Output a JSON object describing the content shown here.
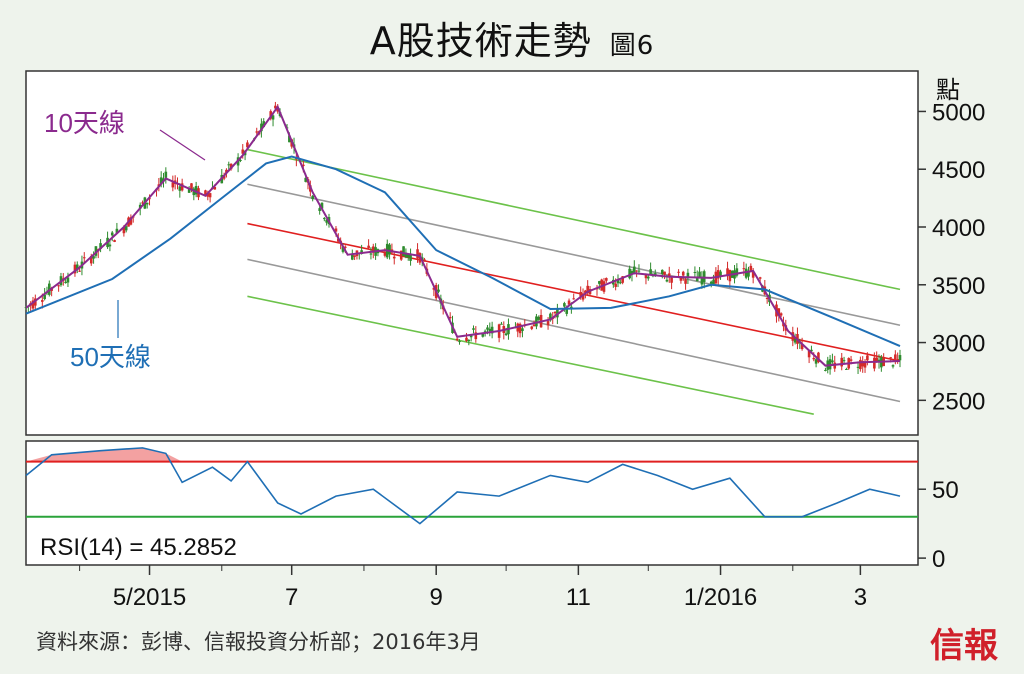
{
  "title": "A股技術走勢",
  "figure_no": "圖6",
  "source": "資料來源：彭博、信報投資分析部；2016年3月",
  "brand": "信報",
  "colors": {
    "candle_up": "#2e8b2e",
    "candle_down": "#d42a2a",
    "ma10": "#8b2a8e",
    "ma50": "#1f6fb5",
    "trend_red": "#e02020",
    "trend_gray": "#999999",
    "trend_green": "#6cc24a",
    "rsi": "#1f6fb5",
    "rsi_upper": "#e02020",
    "rsi_lower": "#2aa33a",
    "rsi_fill": "#f08a8a"
  },
  "chart_data": [
    {
      "type": "candlestick",
      "y_unit": "點",
      "ylim": [
        2200,
        5350
      ],
      "y_ticks": [
        2500,
        3000,
        3500,
        4000,
        4500,
        5000
      ],
      "x_ticks": [
        "5/2015",
        "7",
        "9",
        "11",
        "1/2016",
        "3"
      ],
      "x_range": [
        "2015-03-09",
        "2016-03-18"
      ],
      "series": [
        {
          "name": "10天線",
          "kind": "line",
          "x": [
            "2015-03-09",
            "2015-04-01",
            "2015-04-20",
            "2015-05-08",
            "2015-05-25",
            "2015-06-10",
            "2015-06-25",
            "2015-07-10",
            "2015-07-25",
            "2015-08-10",
            "2015-08-25",
            "2015-09-10",
            "2015-09-28",
            "2015-10-20",
            "2015-11-05",
            "2015-11-25",
            "2015-12-10",
            "2015-12-28",
            "2016-01-15",
            "2016-01-30",
            "2016-02-15",
            "2016-03-01",
            "2016-03-18"
          ],
          "y": [
            3300,
            3650,
            4000,
            4420,
            4270,
            4620,
            5040,
            4300,
            3760,
            3800,
            3750,
            3050,
            3100,
            3200,
            3440,
            3600,
            3570,
            3560,
            3620,
            3100,
            2800,
            2830,
            2840
          ]
        },
        {
          "name": "50天線",
          "kind": "line",
          "x": [
            "2015-03-09",
            "2015-04-15",
            "2015-05-10",
            "2015-06-01",
            "2015-06-20",
            "2015-07-01",
            "2015-07-20",
            "2015-08-10",
            "2015-09-01",
            "2015-09-25",
            "2015-10-20",
            "2015-11-15",
            "2015-12-10",
            "2015-12-28",
            "2016-01-20",
            "2016-02-20",
            "2016-03-18"
          ],
          "y": [
            3250,
            3550,
            3900,
            4250,
            4550,
            4610,
            4500,
            4300,
            3800,
            3560,
            3290,
            3300,
            3400,
            3500,
            3460,
            3200,
            2970
          ]
        }
      ],
      "annotations": [
        "10天線",
        "50天線"
      ],
      "channels": [
        {
          "name": "trend",
          "color": "red",
          "x": [
            "2015-06-12",
            "2016-03-18"
          ],
          "y": [
            4030,
            2840
          ]
        },
        {
          "name": "upper-inner",
          "color": "gray",
          "x": [
            "2015-06-12",
            "2016-03-18"
          ],
          "y": [
            4370,
            3150
          ]
        },
        {
          "name": "lower-inner",
          "color": "gray",
          "x": [
            "2015-06-12",
            "2016-03-18"
          ],
          "y": [
            3720,
            2490
          ]
        },
        {
          "name": "upper-outer",
          "color": "green",
          "x": [
            "2015-06-12",
            "2016-03-18"
          ],
          "y": [
            4670,
            3460
          ]
        },
        {
          "name": "lower-outer",
          "color": "green",
          "x": [
            "2015-06-12",
            "2016-02-10"
          ],
          "y": [
            3400,
            2380
          ]
        }
      ]
    },
    {
      "type": "line",
      "label": "RSI(14) = 45.2852",
      "ylim": [
        -5,
        85
      ],
      "y_ticks": [
        0,
        50
      ],
      "hlines": [
        70,
        30
      ],
      "series": [
        {
          "name": "RSI",
          "x": [
            "2015-03-09",
            "2015-03-20",
            "2015-04-10",
            "2015-04-28",
            "2015-05-08",
            "2015-05-15",
            "2015-05-28",
            "2015-06-05",
            "2015-06-12",
            "2015-06-25",
            "2015-07-05",
            "2015-07-20",
            "2015-08-05",
            "2015-08-25",
            "2015-09-10",
            "2015-09-28",
            "2015-10-20",
            "2015-11-05",
            "2015-11-20",
            "2015-12-05",
            "2015-12-20",
            "2016-01-05",
            "2016-01-20",
            "2016-02-05",
            "2016-02-20",
            "2016-03-05",
            "2016-03-18"
          ],
          "y": [
            60,
            75,
            78,
            80,
            76,
            55,
            66,
            56,
            70,
            40,
            32,
            45,
            50,
            25,
            48,
            45,
            60,
            55,
            68,
            60,
            50,
            58,
            30,
            30,
            40,
            50,
            45
          ]
        }
      ]
    }
  ],
  "rsi_label": "RSI(14) = 45.2852"
}
